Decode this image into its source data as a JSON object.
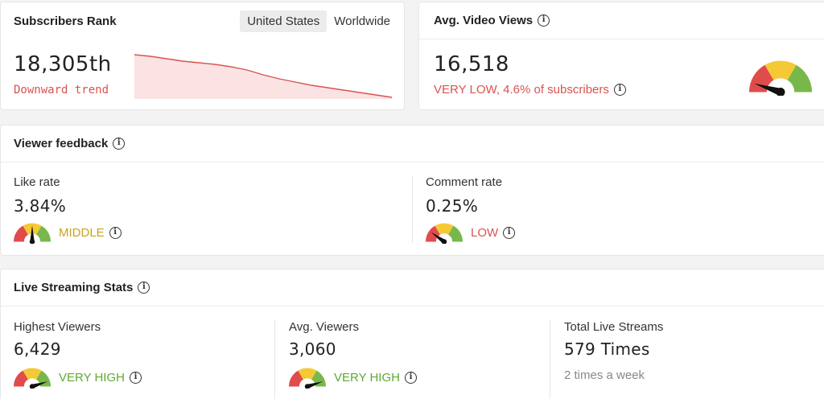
{
  "rank": {
    "title": "Subscribers Rank",
    "tabs": [
      "United States",
      "Worldwide"
    ],
    "active_tab": 0,
    "value": "18,305th",
    "trend": "Downward trend",
    "trend_color": "#d9534f"
  },
  "views": {
    "title": "Avg. Video Views",
    "value": "16,518",
    "note": "VERY LOW, 4.6% of subscribers",
    "note_color": "#d9534f",
    "level": 0.1
  },
  "feedback": {
    "title": "Viewer feedback",
    "like": {
      "label": "Like rate",
      "value": "3.84%",
      "status": "MIDDLE",
      "status_color": "#c9a21b",
      "level": 0.5
    },
    "comment": {
      "label": "Comment rate",
      "value": "0.25%",
      "status": "LOW",
      "status_color": "#d9534f",
      "level": 0.2
    }
  },
  "live": {
    "title": "Live Streaming Stats",
    "highest": {
      "label": "Highest Viewers",
      "value": "6,429",
      "status": "VERY HIGH",
      "status_color": "#5cab33",
      "level": 0.9
    },
    "avg": {
      "label": "Avg. Viewers",
      "value": "3,060",
      "status": "VERY HIGH",
      "status_color": "#5cab33",
      "level": 0.9
    },
    "total": {
      "label": "Total Live Streams",
      "value": "579 Times",
      "sub": "2 times a week"
    }
  },
  "colors": {
    "gauge_red": "#e04b4b",
    "gauge_yellow": "#f5c935",
    "gauge_green": "#78b84a"
  },
  "icons": [
    "info-icon",
    "gauge-icon"
  ]
}
